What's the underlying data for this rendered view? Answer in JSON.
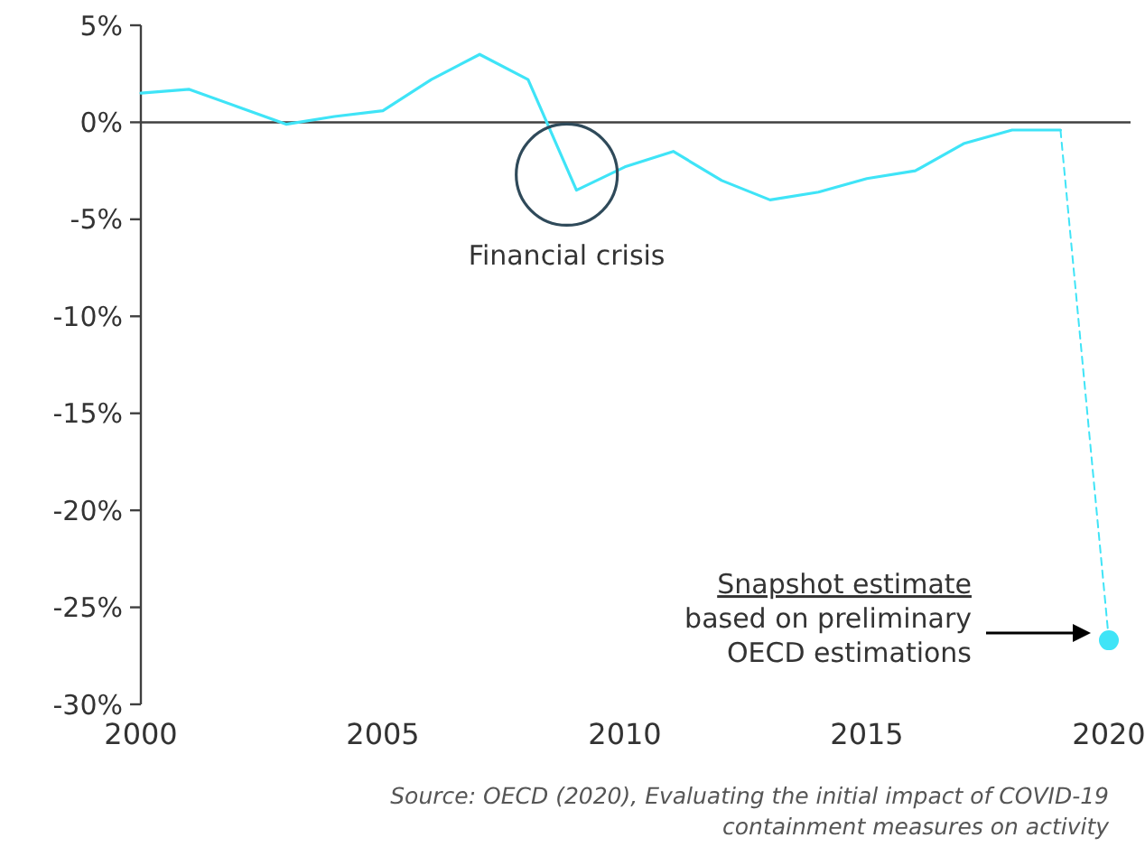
{
  "chart_data": {
    "type": "line",
    "x": [
      2000,
      2001,
      2002,
      2003,
      2004,
      2005,
      2006,
      2007,
      2008,
      2009,
      2010,
      2011,
      2012,
      2013,
      2014,
      2015,
      2016,
      2017,
      2018,
      2019,
      2020
    ],
    "series": [
      {
        "color": "#3fe4f7",
        "values": [
          1.5,
          1.7,
          0.8,
          -0.1,
          0.3,
          0.6,
          2.2,
          3.5,
          2.2,
          -3.5,
          -2.3,
          -1.5,
          -3.0,
          -4.0,
          -3.6,
          -2.9,
          -2.5,
          -1.1,
          -0.4,
          -0.4,
          null
        ],
        "line_style": "solid",
        "marker": "none"
      },
      {
        "color": "#3fe4f7",
        "values": [
          null,
          null,
          null,
          null,
          null,
          null,
          null,
          null,
          null,
          null,
          null,
          null,
          null,
          null,
          null,
          null,
          null,
          null,
          null,
          -0.4,
          -26.7
        ],
        "line_style": "dashed",
        "marker": "none"
      },
      {
        "type": "scatter",
        "color": "#3fe4f7",
        "values": [
          null,
          null,
          null,
          null,
          null,
          null,
          null,
          null,
          null,
          null,
          null,
          null,
          null,
          null,
          null,
          null,
          null,
          null,
          null,
          null,
          -26.7
        ],
        "marker": "circle"
      }
    ],
    "xlim": [
      2000,
      2020
    ],
    "xticks": [
      2000,
      2005,
      2010,
      2015,
      2020
    ],
    "ylim": [
      -30,
      5
    ],
    "yticks": [
      {
        "value": 5,
        "label": "5%"
      },
      {
        "value": 0,
        "label": "0%"
      },
      {
        "value": -5,
        "label": "-5%"
      },
      {
        "value": -10,
        "label": "-10%"
      },
      {
        "value": -15,
        "label": "-15%"
      },
      {
        "value": -20,
        "label": "-20%"
      },
      {
        "value": -25,
        "label": "-25%"
      },
      {
        "value": -30,
        "label": "-30%"
      }
    ],
    "ref_lines": [
      {
        "axis": "y",
        "value": 0,
        "color": "#404040"
      }
    ],
    "grid": false,
    "annotations": [
      {
        "text": "Financial crisis",
        "x": 2008.8,
        "y": -2.7
      },
      "Snapshot estimate\nbased on preliminary\nOECD estimations",
      "Source: OECD (2020), Evaluating the initial impact of COVID-19\ncontainment measures on activity"
    ]
  }
}
